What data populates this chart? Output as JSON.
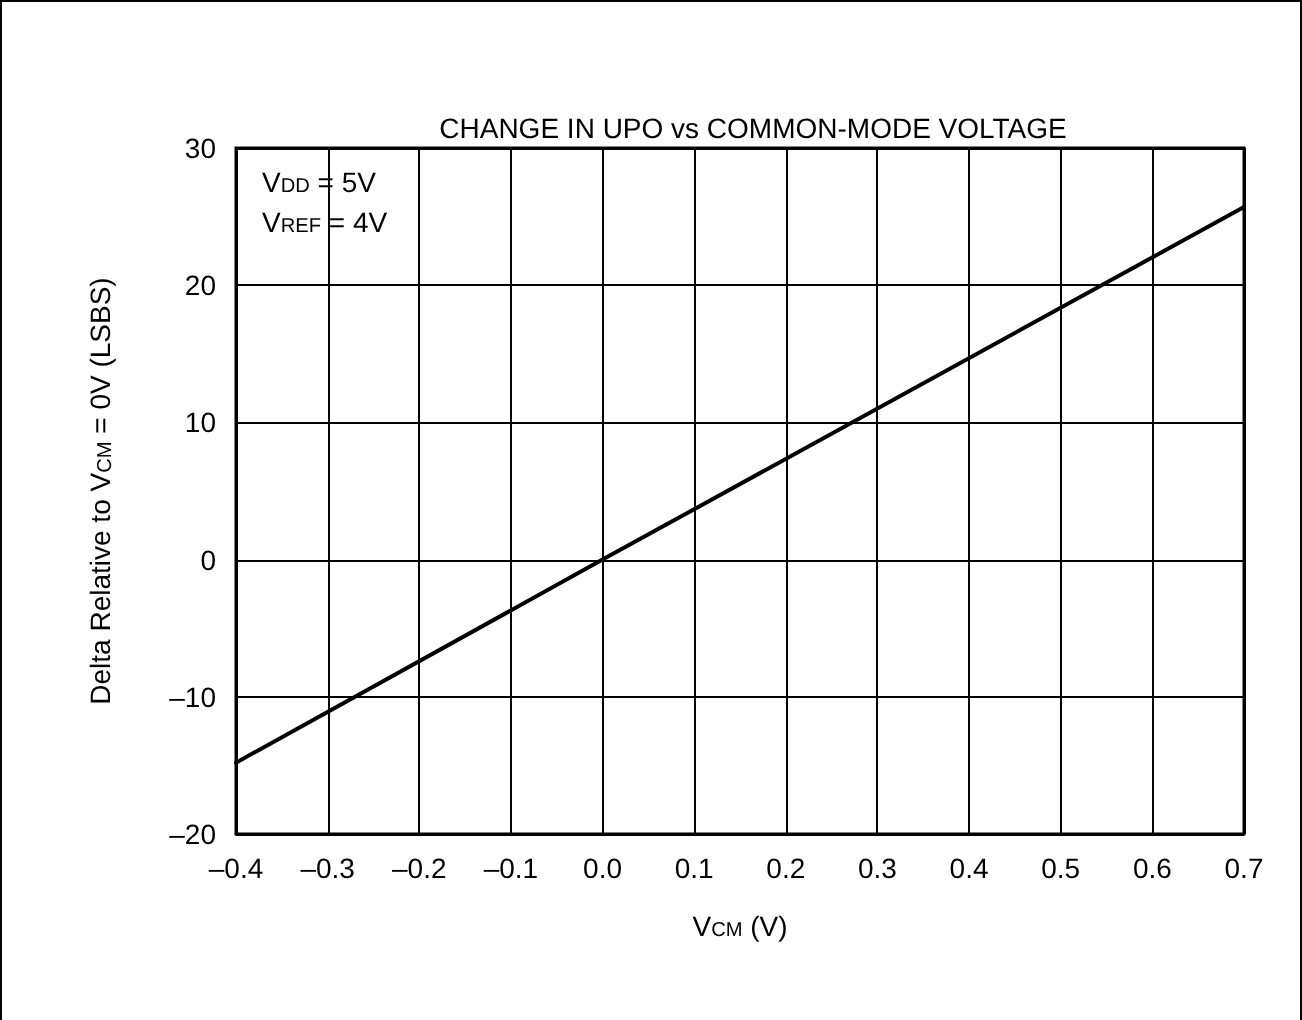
{
  "chart_data": {
    "type": "line",
    "title": "CHANGE IN UPO vs COMMON-MODE VOLTAGE",
    "xlabel": "V$_{CM}$ (V)",
    "ylabel": "Delta Relative to V$_{CM}$ = 0V (LSBS)",
    "annotations": [
      "V$_{DD}$ = 5V",
      "V$_{REF}$ = 4V"
    ],
    "x": [
      -0.4,
      0,
      0.7
    ],
    "series": [
      {
        "color": "#000000",
        "values": [
          -14.8,
          0,
          25.7
        ]
      }
    ],
    "xlim": [
      -0.4,
      0.7
    ],
    "xticks": [
      {
        "value": -0.4,
        "label": "–0.4"
      },
      {
        "value": -0.3,
        "label": "–0.3"
      },
      {
        "value": -0.2,
        "label": "–0.2"
      },
      {
        "value": -0.1,
        "label": "–0.1"
      },
      {
        "value": 0,
        "label": "0.0"
      },
      0.1,
      0.2,
      0.3,
      0.4,
      0.5,
      0.6,
      0.7
    ],
    "ylim": [
      -20,
      30
    ],
    "yticks": [
      {
        "value": -20,
        "label": "–20"
      },
      {
        "value": -10,
        "label": "–10"
      },
      0,
      10,
      20,
      30
    ],
    "grid": true,
    "marker": "none",
    "line_style": "solid"
  }
}
